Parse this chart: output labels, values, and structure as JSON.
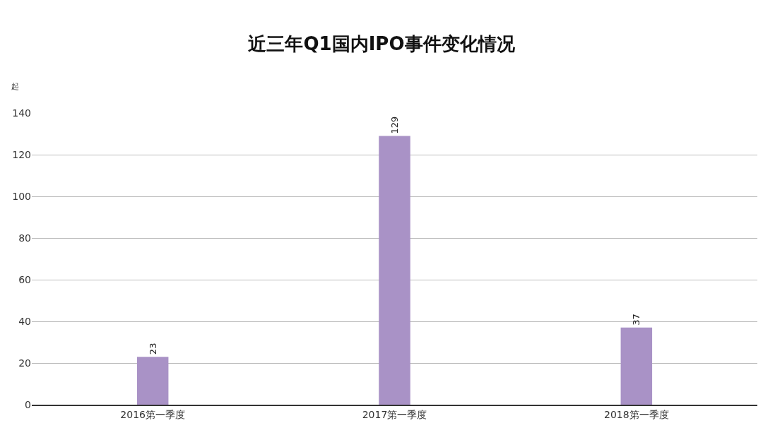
{
  "chart_data": {
    "type": "bar",
    "title": "近三年Q1国内IPO事件变化情况",
    "ylabel": "起",
    "categories": [
      "2016第一季度",
      "2017第一季度",
      "2018第一季度"
    ],
    "values": [
      23,
      129,
      37
    ],
    "color": "#a992c6",
    "data_labels": true,
    "ylim": [
      0,
      140
    ],
    "yticks": [
      0,
      20,
      40,
      60,
      80,
      100,
      120,
      140
    ],
    "grid": "y",
    "legend": false
  }
}
